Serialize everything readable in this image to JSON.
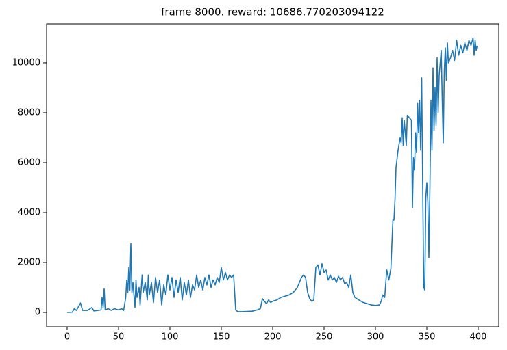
{
  "chart_data": {
    "type": "line",
    "title": "frame 8000. reward: 10686.770203094122",
    "x": [
      0,
      5,
      7,
      9,
      12,
      13,
      15,
      20,
      24,
      26,
      30,
      33,
      34,
      35,
      36,
      37,
      40,
      43,
      46,
      50,
      53,
      55,
      57,
      58,
      59,
      60,
      61,
      62,
      63,
      64,
      66,
      67,
      68,
      70,
      71,
      73,
      74,
      76,
      78,
      79,
      80,
      82,
      84,
      86,
      88,
      90,
      92,
      94,
      96,
      98,
      100,
      102,
      104,
      106,
      108,
      110,
      112,
      114,
      116,
      118,
      120,
      122,
      124,
      126,
      128,
      130,
      132,
      134,
      136,
      138,
      140,
      142,
      144,
      146,
      148,
      150,
      152,
      154,
      156,
      158,
      160,
      162,
      164,
      166,
      170,
      175,
      180,
      185,
      188,
      190,
      192,
      194,
      196,
      198,
      200,
      204,
      208,
      212,
      216,
      220,
      222,
      224,
      226,
      228,
      230,
      232,
      234,
      236,
      238,
      240,
      242,
      244,
      246,
      248,
      250,
      252,
      254,
      256,
      258,
      260,
      262,
      264,
      266,
      268,
      270,
      272,
      274,
      276,
      278,
      280,
      284,
      288,
      292,
      296,
      300,
      304,
      306,
      307,
      309,
      311,
      313,
      315,
      317,
      318,
      319,
      320,
      322,
      324,
      325,
      326,
      327,
      328,
      330,
      331,
      333,
      335,
      336,
      337,
      338,
      339,
      340,
      341,
      342,
      343,
      344,
      345,
      346,
      347,
      348,
      349,
      350,
      351,
      352,
      353,
      354,
      355,
      356,
      357,
      358,
      359,
      360,
      361,
      362,
      364,
      365,
      366,
      367,
      368,
      369,
      370,
      371,
      373,
      375,
      377,
      379,
      381,
      383,
      385,
      387,
      389,
      391,
      393,
      395,
      396,
      397,
      398,
      399
    ],
    "series": [
      {
        "color": "#1f77b4",
        "values": [
          0,
          10,
          150,
          80,
          300,
          380,
          80,
          80,
          200,
          60,
          80,
          100,
          600,
          200,
          950,
          100,
          150,
          80,
          150,
          100,
          150,
          80,
          600,
          1300,
          800,
          1800,
          900,
          2750,
          800,
          1200,
          200,
          1300,
          600,
          1000,
          300,
          1500,
          800,
          1200,
          500,
          1500,
          700,
          1200,
          400,
          1400,
          800,
          1300,
          300,
          1100,
          700,
          1500,
          900,
          1400,
          600,
          1300,
          800,
          1400,
          500,
          1200,
          700,
          1300,
          600,
          1100,
          900,
          1500,
          1000,
          1300,
          900,
          1400,
          1100,
          1500,
          1000,
          1300,
          1100,
          1400,
          1200,
          1800,
          1300,
          1600,
          1300,
          1500,
          1400,
          1500,
          100,
          30,
          30,
          40,
          50,
          100,
          150,
          550,
          450,
          350,
          500,
          400,
          450,
          500,
          600,
          650,
          700,
          800,
          900,
          1000,
          1200,
          1400,
          1500,
          1400,
          800,
          550,
          450,
          500,
          1800,
          1900,
          1500,
          1950,
          1600,
          1700,
          1300,
          1500,
          1300,
          1400,
          1200,
          1450,
          1300,
          1400,
          1150,
          1200,
          1000,
          1500,
          800,
          600,
          500,
          400,
          350,
          300,
          280,
          300,
          500,
          700,
          600,
          1700,
          1300,
          1750,
          3700,
          3700,
          4500,
          5800,
          6500,
          7000,
          6800,
          7800,
          6700,
          7700,
          6700,
          7900,
          7800,
          7700,
          4200,
          6200,
          5700,
          7200,
          6400,
          8400,
          7200,
          8500,
          6500,
          9400,
          5000,
          1000,
          900,
          4600,
          5200,
          4400,
          2200,
          5000,
          8500,
          6500,
          9800,
          7300,
          9000,
          7500,
          10200,
          8000,
          9500,
          10500,
          8500,
          6800,
          9700,
          10600,
          9300,
          10800,
          10000,
          10200,
          10500,
          10100,
          10900,
          10300,
          10700,
          10400,
          10800,
          10500,
          10900,
          10700,
          11000,
          10300,
          10900,
          10500,
          10686
        ]
      }
    ],
    "xlim": [
      -20,
      420
    ],
    "ylim": [
      -575,
      11560
    ],
    "xticks": [
      0,
      50,
      100,
      150,
      200,
      250,
      300,
      350,
      400
    ],
    "yticks": [
      0,
      2000,
      4000,
      6000,
      8000,
      10000
    ]
  }
}
